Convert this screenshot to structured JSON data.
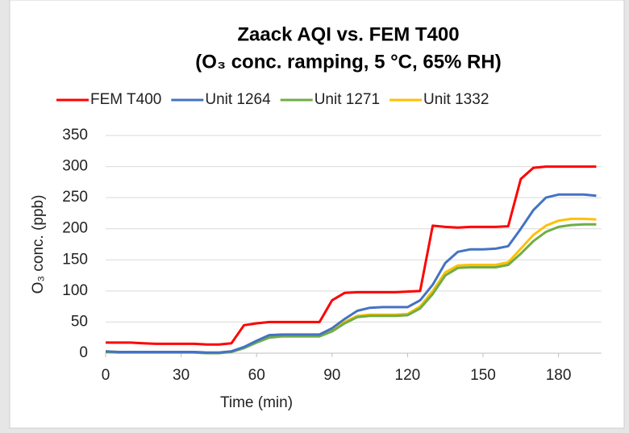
{
  "chart_data": {
    "type": "line",
    "title": "Zaack AQI vs. FEM T400",
    "subtitle": "(O₃ conc. ramping, 5 °C, 65% RH)",
    "x_label": "Time (min)",
    "y_label": "O₃ conc. (ppb)",
    "x": [
      0,
      5,
      10,
      15,
      20,
      25,
      30,
      35,
      40,
      45,
      50,
      55,
      60,
      65,
      70,
      75,
      80,
      85,
      90,
      95,
      100,
      105,
      110,
      115,
      120,
      125,
      130,
      135,
      140,
      145,
      150,
      155,
      160,
      165,
      170,
      175,
      180,
      185,
      190,
      195
    ],
    "series": [
      {
        "name": "FEM T400",
        "color": "#ff0000",
        "values": [
          17,
          17,
          17,
          16,
          15,
          15,
          15,
          15,
          14,
          14,
          16,
          45,
          48,
          50,
          50,
          50,
          50,
          50,
          85,
          97,
          98,
          98,
          98,
          98,
          99,
          100,
          205,
          203,
          202,
          203,
          203,
          203,
          204,
          280,
          298,
          300,
          300,
          300,
          300,
          300
        ]
      },
      {
        "name": "Unit 1264",
        "color": "#4472c4",
        "values": [
          3,
          2,
          2,
          2,
          2,
          2,
          2,
          2,
          1,
          1,
          3,
          10,
          20,
          29,
          30,
          30,
          30,
          30,
          40,
          55,
          68,
          73,
          74,
          74,
          74,
          85,
          110,
          145,
          163,
          167,
          167,
          168,
          172,
          200,
          230,
          250,
          255,
          255,
          255,
          253
        ]
      },
      {
        "name": "Unit 1271",
        "color": "#70ad47",
        "values": [
          2,
          1,
          1,
          1,
          1,
          1,
          1,
          1,
          0,
          0,
          2,
          8,
          17,
          25,
          27,
          27,
          27,
          27,
          35,
          48,
          58,
          60,
          60,
          60,
          61,
          72,
          95,
          125,
          137,
          138,
          138,
          138,
          142,
          160,
          180,
          195,
          203,
          206,
          207,
          207
        ]
      },
      {
        "name": "Unit 1332",
        "color": "#ffc000",
        "values": [
          3,
          2,
          2,
          2,
          2,
          2,
          2,
          2,
          1,
          1,
          3,
          9,
          18,
          26,
          28,
          28,
          28,
          28,
          37,
          50,
          60,
          62,
          62,
          62,
          63,
          75,
          100,
          130,
          141,
          142,
          142,
          142,
          146,
          168,
          190,
          205,
          213,
          216,
          216,
          215
        ]
      }
    ],
    "xlim": [
      0,
      197
    ],
    "xticks": [
      0,
      30,
      60,
      90,
      120,
      150,
      180
    ],
    "ylim": [
      0,
      350
    ],
    "yticks": [
      0,
      50,
      100,
      150,
      200,
      250,
      300,
      350
    ],
    "grid": true,
    "legend": "top"
  }
}
